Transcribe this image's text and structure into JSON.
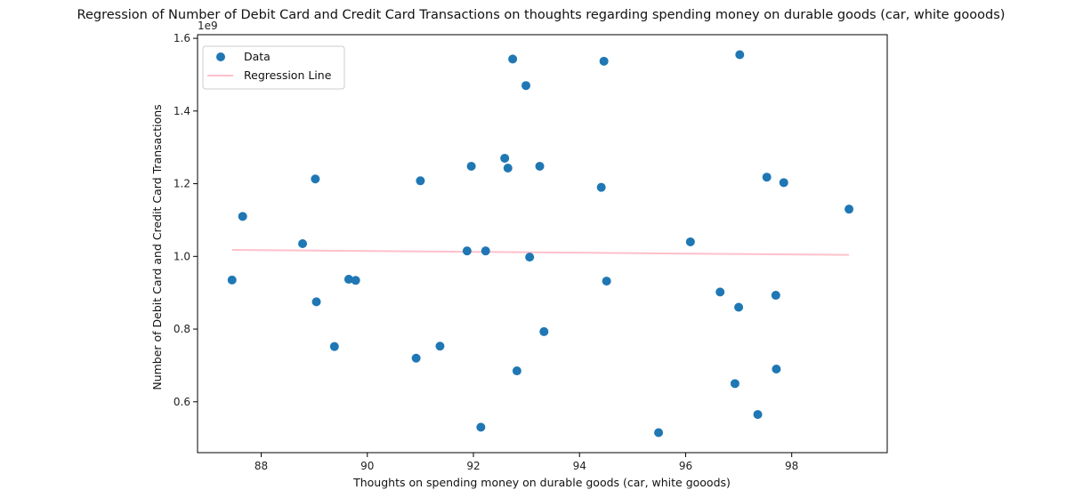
{
  "chart_data": {
    "type": "scatter",
    "title": "Regression of Number of Debit Card and Credit Card Transactions on thoughts regarding spending money on durable goods (car, white gooods)",
    "xlabel": "Thoughts on spending money on durable goods (car, white gooods)",
    "ylabel": "Number of Debit Card and Credit Card Transactions",
    "y_offset_label": "1e9",
    "xlim": [
      86.8,
      99.8
    ],
    "ylim": [
      0.46,
      1.61
    ],
    "xticks": [
      88,
      90,
      92,
      94,
      96,
      98
    ],
    "yticks": [
      0.6,
      0.8,
      1.0,
      1.2,
      1.4,
      1.6
    ],
    "ytick_labels": [
      "0.6",
      "0.8",
      "1.0",
      "1.2",
      "1.4",
      "1.6"
    ],
    "grid": false,
    "legend_position": "top-left",
    "series": [
      {
        "name": "Data",
        "kind": "scatter",
        "color": "#1f77b4",
        "points": [
          [
            87.45,
            0.935
          ],
          [
            87.65,
            1.11
          ],
          [
            88.78,
            1.035
          ],
          [
            89.02,
            1.213
          ],
          [
            89.04,
            0.875
          ],
          [
            89.38,
            0.752
          ],
          [
            89.65,
            0.937
          ],
          [
            89.78,
            0.934
          ],
          [
            90.92,
            0.72
          ],
          [
            91.0,
            1.208
          ],
          [
            91.37,
            0.753
          ],
          [
            91.88,
            1.015
          ],
          [
            91.96,
            1.248
          ],
          [
            92.14,
            0.53
          ],
          [
            92.23,
            1.015
          ],
          [
            92.59,
            1.27
          ],
          [
            92.65,
            1.243
          ],
          [
            92.74,
            1.543
          ],
          [
            92.82,
            0.685
          ],
          [
            92.99,
            1.47
          ],
          [
            93.06,
            0.998
          ],
          [
            93.25,
            1.248
          ],
          [
            93.33,
            0.793
          ],
          [
            94.41,
            1.19
          ],
          [
            94.46,
            1.537
          ],
          [
            94.51,
            0.932
          ],
          [
            95.49,
            0.515
          ],
          [
            96.09,
            1.04
          ],
          [
            96.65,
            0.902
          ],
          [
            96.93,
            0.65
          ],
          [
            97.0,
            0.86
          ],
          [
            97.02,
            1.555
          ],
          [
            97.36,
            0.565
          ],
          [
            97.53,
            1.218
          ],
          [
            97.7,
            0.893
          ],
          [
            97.71,
            0.69
          ],
          [
            97.85,
            1.203
          ],
          [
            99.08,
            1.13
          ]
        ]
      },
      {
        "name": "Regression Line",
        "kind": "line",
        "color": "#ffc0cb",
        "points": [
          [
            87.45,
            1.018
          ],
          [
            99.08,
            1.004
          ]
        ]
      }
    ]
  }
}
